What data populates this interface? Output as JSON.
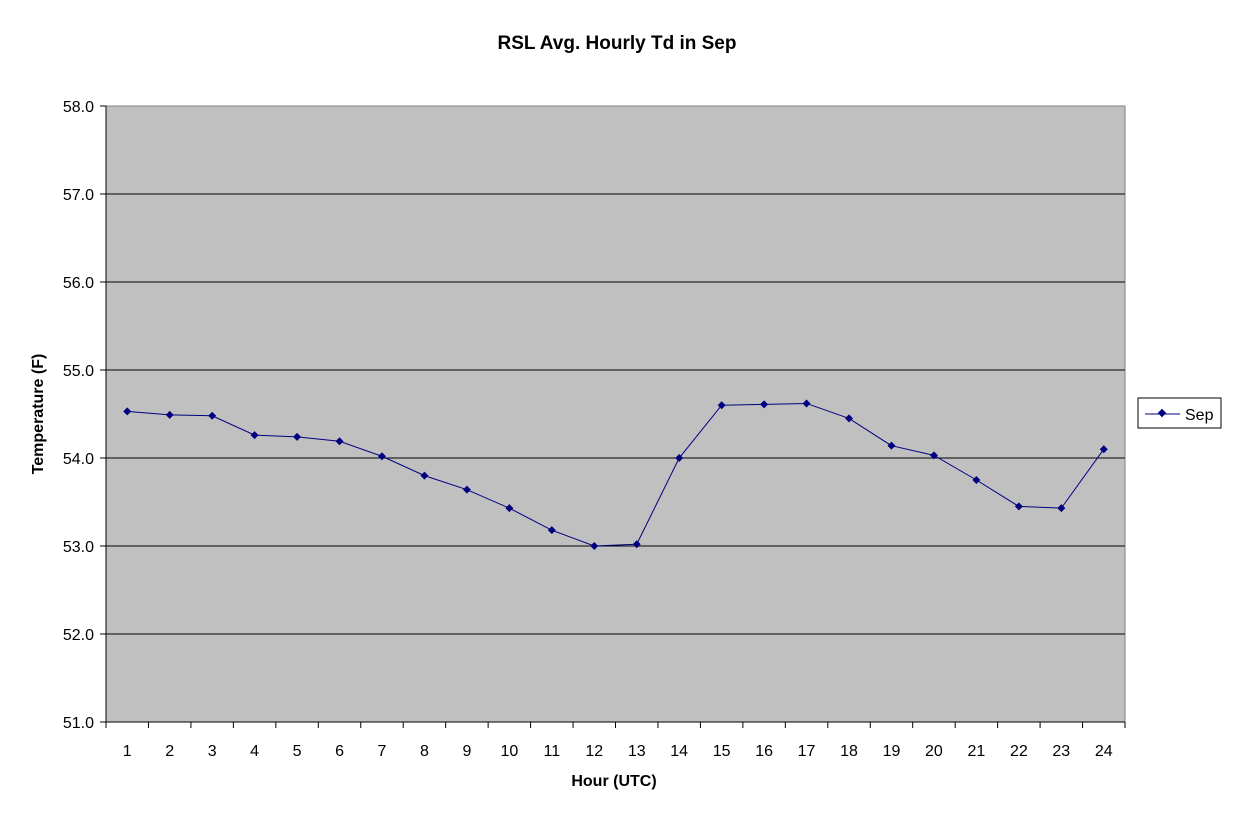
{
  "chart_data": {
    "type": "line",
    "title": "RSL Avg. Hourly Td in Sep",
    "xlabel": "Hour (UTC)",
    "ylabel": "Temperature (F)",
    "categories": [
      "1",
      "2",
      "3",
      "4",
      "5",
      "6",
      "7",
      "8",
      "9",
      "10",
      "11",
      "12",
      "13",
      "14",
      "15",
      "16",
      "17",
      "18",
      "19",
      "20",
      "21",
      "22",
      "23",
      "24"
    ],
    "ylim": [
      51.0,
      58.0
    ],
    "yticks": [
      "51.0",
      "52.0",
      "53.0",
      "54.0",
      "55.0",
      "56.0",
      "57.0",
      "58.0"
    ],
    "grid": true,
    "legend_position": "right",
    "series": [
      {
        "name": "Sep",
        "color": "#000080",
        "values": [
          54.53,
          54.49,
          54.48,
          54.26,
          54.24,
          54.19,
          54.02,
          53.8,
          53.64,
          53.43,
          53.18,
          53.0,
          53.02,
          54.0,
          54.6,
          54.61,
          54.62,
          54.45,
          54.14,
          54.03,
          53.75,
          53.45,
          53.43,
          54.1
        ]
      }
    ],
    "plot_background": "#c0c0c0",
    "gridline_color": "#000000"
  }
}
